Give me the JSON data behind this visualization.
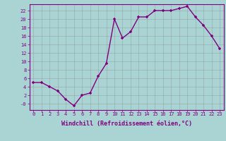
{
  "x": [
    0,
    1,
    2,
    3,
    4,
    5,
    6,
    7,
    8,
    9,
    10,
    11,
    12,
    13,
    14,
    15,
    16,
    17,
    18,
    19,
    20,
    21,
    22,
    23
  ],
  "y": [
    5,
    5,
    4,
    3,
    1,
    -0.5,
    2,
    2.5,
    6.5,
    9.5,
    20,
    15.5,
    17,
    20.5,
    20.5,
    22,
    22,
    22,
    22.5,
    23,
    20.5,
    18.5,
    16,
    13
  ],
  "line_color": "#800080",
  "marker_color": "#800080",
  "bg_color": "#aad4d4",
  "grid_color": "#888888",
  "xlabel": "Windchill (Refroidissement éolien,°C)",
  "ytick_vals": [
    0,
    2,
    4,
    6,
    8,
    10,
    12,
    14,
    16,
    18,
    20,
    22
  ],
  "ytick_labels": [
    "-0",
    "2",
    "4",
    "6",
    "8",
    "10",
    "12",
    "14",
    "16",
    "18",
    "20",
    "22"
  ],
  "xticks": [
    0,
    1,
    2,
    3,
    4,
    5,
    6,
    7,
    8,
    9,
    10,
    11,
    12,
    13,
    14,
    15,
    16,
    17,
    18,
    19,
    20,
    21,
    22,
    23
  ],
  "ylim": [
    -1.5,
    23.5
  ],
  "xlim": [
    -0.5,
    23.5
  ],
  "font_color": "#800080",
  "tick_fontsize": 5.0,
  "xlabel_fontsize": 6.0,
  "linewidth": 1.0,
  "markersize": 3.5
}
